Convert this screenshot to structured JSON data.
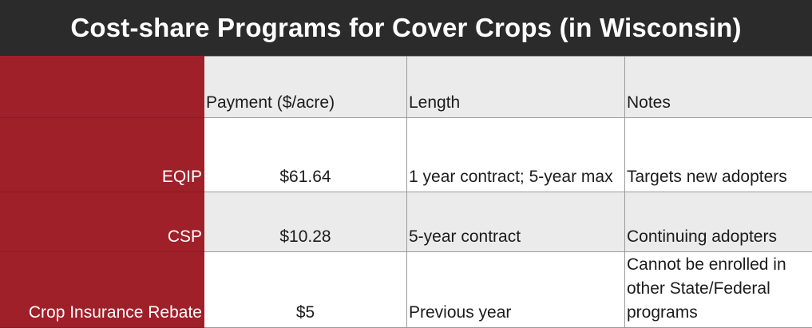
{
  "title": "Cost-share Programs for Cover Crops (in Wisconsin)",
  "headers": {
    "program": "",
    "payment": "Payment ($/acre)",
    "length": "Length",
    "notes": "Notes"
  },
  "rows": [
    {
      "program": "EQIP",
      "payment": "$61.64",
      "length": "1 year contract; 5-year max",
      "notes": "Targets new adopters"
    },
    {
      "program": "CSP",
      "payment": "$10.28",
      "length": "5-year contract",
      "notes": "Continuing adopters"
    },
    {
      "program": "Crop Insurance Rebate",
      "payment": "$5",
      "length": "Previous year",
      "notes": "Cannot be enrolled in other State/Federal programs"
    }
  ],
  "colors": {
    "title_bar": "#2b2b2b",
    "row_header": "#a0202a",
    "alt_row": "#ebebeb"
  }
}
